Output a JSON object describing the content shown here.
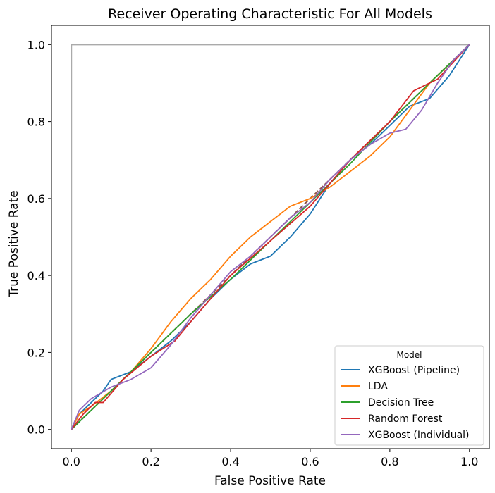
{
  "chart_data": {
    "type": "line",
    "title": "Receiver Operating Characteristic For All Models",
    "xlabel": "False Positive Rate",
    "ylabel": "True Positive Rate",
    "xlim": [
      -0.05,
      1.05
    ],
    "ylim": [
      -0.05,
      1.05
    ],
    "xticks": [
      "0.0",
      "0.2",
      "0.4",
      "0.6",
      "0.8",
      "1.0"
    ],
    "yticks": [
      "0.0",
      "0.2",
      "0.4",
      "0.6",
      "0.8",
      "1.0"
    ],
    "grid": false,
    "legend": {
      "title": "Model",
      "placement": "lower-right"
    },
    "series": [
      {
        "name": "XGBoost (Pipeline)",
        "color": "#1f77b4",
        "x": [
          0,
          0.02,
          0.05,
          0.08,
          0.1,
          0.15,
          0.2,
          0.25,
          0.3,
          0.35,
          0.4,
          0.45,
          0.5,
          0.55,
          0.6,
          0.65,
          0.7,
          0.75,
          0.8,
          0.85,
          0.9,
          0.95,
          1.0
        ],
        "y": [
          0,
          0.04,
          0.07,
          0.1,
          0.13,
          0.15,
          0.19,
          0.23,
          0.28,
          0.34,
          0.39,
          0.43,
          0.45,
          0.5,
          0.56,
          0.64,
          0.7,
          0.74,
          0.79,
          0.84,
          0.86,
          0.92,
          1.0
        ]
      },
      {
        "name": "LDA",
        "color": "#ff7f0e",
        "x": [
          0,
          0.02,
          0.05,
          0.1,
          0.15,
          0.2,
          0.25,
          0.3,
          0.35,
          0.4,
          0.45,
          0.5,
          0.55,
          0.6,
          0.65,
          0.7,
          0.75,
          0.8,
          0.85,
          0.9,
          0.95,
          1.0
        ],
        "y": [
          0,
          0.04,
          0.06,
          0.1,
          0.15,
          0.21,
          0.28,
          0.34,
          0.39,
          0.45,
          0.5,
          0.54,
          0.58,
          0.6,
          0.63,
          0.67,
          0.71,
          0.76,
          0.83,
          0.9,
          0.95,
          1.0
        ]
      },
      {
        "name": "Decision Tree",
        "color": "#2ca02c",
        "x": [
          0,
          0.1,
          0.2,
          0.3,
          0.4,
          0.5,
          0.6,
          0.7,
          0.8,
          0.9,
          1.0
        ],
        "y": [
          0,
          0.1,
          0.2,
          0.3,
          0.39,
          0.49,
          0.59,
          0.69,
          0.8,
          0.9,
          1.0
        ]
      },
      {
        "name": "Random Forest",
        "color": "#d62728",
        "x": [
          0,
          0.03,
          0.06,
          0.08,
          0.13,
          0.2,
          0.26,
          0.3,
          0.35,
          0.4,
          0.5,
          0.6,
          0.7,
          0.8,
          0.86,
          0.92,
          1.0
        ],
        "y": [
          0,
          0.04,
          0.07,
          0.07,
          0.13,
          0.19,
          0.23,
          0.28,
          0.34,
          0.4,
          0.49,
          0.58,
          0.7,
          0.8,
          0.88,
          0.91,
          1.0
        ]
      },
      {
        "name": "XGBoost (Individual)",
        "color": "#9467bd",
        "x": [
          0,
          0.02,
          0.05,
          0.1,
          0.15,
          0.2,
          0.25,
          0.3,
          0.35,
          0.4,
          0.45,
          0.5,
          0.55,
          0.6,
          0.65,
          0.7,
          0.75,
          0.8,
          0.84,
          0.88,
          0.92,
          0.96,
          1.0
        ],
        "y": [
          0,
          0.05,
          0.08,
          0.11,
          0.13,
          0.16,
          0.22,
          0.29,
          0.35,
          0.41,
          0.45,
          0.5,
          0.55,
          0.59,
          0.65,
          0.7,
          0.74,
          0.77,
          0.78,
          0.83,
          0.9,
          0.96,
          1.0
        ]
      }
    ],
    "reference_lines": [
      {
        "kind": "chance-diagonal",
        "color": "#8c564b",
        "style": "dashed",
        "x": [
          0,
          1
        ],
        "y": [
          0,
          1
        ]
      },
      {
        "kind": "perfect-classifier",
        "color": "#aaaaaa",
        "style": "solid",
        "x": [
          0,
          0,
          1
        ],
        "y": [
          0,
          1,
          1
        ]
      }
    ]
  }
}
